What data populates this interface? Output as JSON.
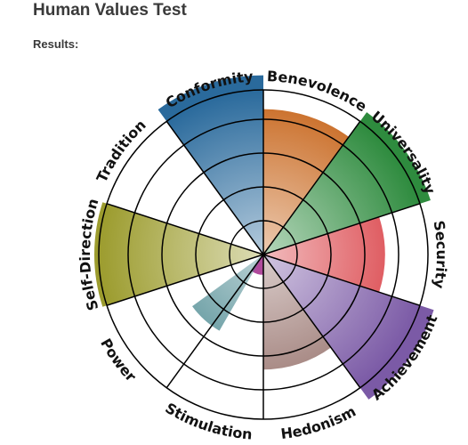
{
  "page": {
    "title": "Human Values Test",
    "results_label": "Results:"
  },
  "chart_data": {
    "type": "polar-area",
    "rmax": 5,
    "rings": [
      1,
      2,
      3,
      4,
      5
    ],
    "grid": true,
    "categories": [
      "Benevolence",
      "Universality",
      "Security",
      "Achievement",
      "Hedonism",
      "Stimulation",
      "Power",
      "Self-Direction",
      "Tradition",
      "Conformity"
    ],
    "values": [
      4.3,
      5.2,
      3.6,
      5.3,
      3.4,
      0,
      0,
      5.0,
      0,
      5.3
    ],
    "inner_values": [
      0,
      0,
      0,
      0,
      0,
      0.6,
      0,
      0,
      0,
      0
    ],
    "colors": [
      "#c8681f",
      "#2e8b3e",
      "#d93d43",
      "#7b5aa6",
      "#95706a",
      "#b04a9c",
      "#999999",
      "#9c9c2e",
      "#3a6a74",
      "#2a6a9c"
    ],
    "extra_slices": [
      {
        "angle_from": 210,
        "angle_to": 234,
        "value": 2.6,
        "color": "#3a7e86"
      }
    ]
  }
}
